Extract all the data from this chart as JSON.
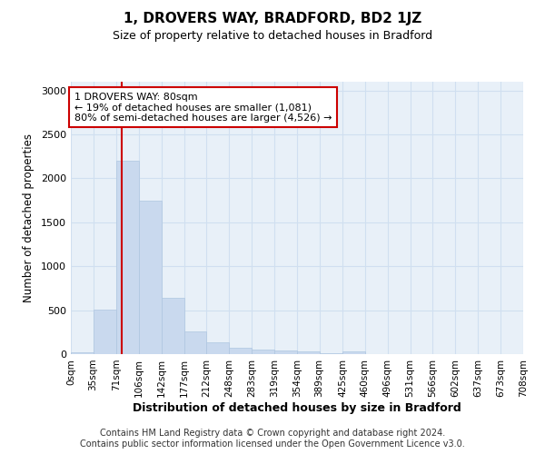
{
  "title": "1, DROVERS WAY, BRADFORD, BD2 1JZ",
  "subtitle": "Size of property relative to detached houses in Bradford",
  "xlabel": "Distribution of detached houses by size in Bradford",
  "ylabel": "Number of detached properties",
  "footer_line1": "Contains HM Land Registry data © Crown copyright and database right 2024.",
  "footer_line2": "Contains public sector information licensed under the Open Government Licence v3.0.",
  "annotation_title": "1 DROVERS WAY: 80sqm",
  "annotation_line1": "← 19% of detached houses are smaller (1,081)",
  "annotation_line2": "80% of semi-detached houses are larger (4,526) →",
  "property_size": 80,
  "bar_left_edges": [
    0,
    35,
    71,
    106,
    142,
    177,
    212,
    248,
    283,
    319,
    354,
    389,
    425,
    460,
    496,
    531,
    566,
    602,
    637,
    673
  ],
  "bar_widths": [
    35,
    36,
    35,
    36,
    35,
    35,
    36,
    35,
    36,
    35,
    35,
    36,
    35,
    36,
    35,
    35,
    36,
    35,
    36,
    35
  ],
  "bar_values": [
    20,
    510,
    2200,
    1750,
    640,
    255,
    130,
    70,
    50,
    40,
    30,
    8,
    28,
    3,
    2,
    1,
    1,
    0,
    0,
    0
  ],
  "bar_color": "#c9d9ee",
  "bar_edge_color": "#aec6e0",
  "line_color": "#cc0000",
  "grid_color": "#d0dff0",
  "bg_color": "#e8f0f8",
  "annotation_box_edge_color": "#cc0000",
  "ylim": [
    0,
    3100
  ],
  "yticks": [
    0,
    500,
    1000,
    1500,
    2000,
    2500,
    3000
  ],
  "xtick_labels": [
    "0sqm",
    "35sqm",
    "71sqm",
    "106sqm",
    "142sqm",
    "177sqm",
    "212sqm",
    "248sqm",
    "283sqm",
    "319sqm",
    "354sqm",
    "389sqm",
    "425sqm",
    "460sqm",
    "496sqm",
    "531sqm",
    "566sqm",
    "602sqm",
    "637sqm",
    "673sqm",
    "708sqm"
  ]
}
